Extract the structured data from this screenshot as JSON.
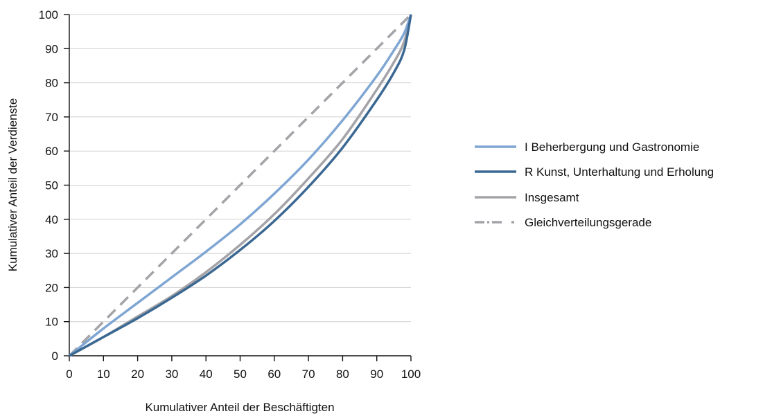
{
  "chart_data": {
    "type": "line",
    "title": "",
    "xlabel": "Kumulativer Anteil der Beschäftigten",
    "ylabel": "Kumulativer Anteil der Verdienste",
    "xlim": [
      0,
      100
    ],
    "ylim": [
      0,
      100
    ],
    "x_ticks": [
      "0",
      "10",
      "20",
      "30",
      "40",
      "50",
      "60",
      "70",
      "80",
      "90",
      "100"
    ],
    "y_ticks": [
      "0",
      "10",
      "20",
      "30",
      "40",
      "50",
      "60",
      "70",
      "80",
      "90",
      "100"
    ],
    "grid": "horizontal",
    "legend_position": "right",
    "x": [
      0,
      10,
      20,
      30,
      40,
      50,
      60,
      70,
      80,
      90,
      95,
      98,
      100
    ],
    "series": [
      {
        "name": "I Beherbergung und Gastronomie",
        "color": "#7fa6d3",
        "dash": "solid",
        "values": [
          0,
          8,
          15.5,
          23,
          30.5,
          38.5,
          47.5,
          57.5,
          69,
          82,
          89.5,
          94.5,
          100
        ]
      },
      {
        "name": "R Kunst, Unterhaltung und Erholung",
        "color": "#3a6892",
        "dash": "solid",
        "values": [
          0,
          5.5,
          11,
          17,
          23.5,
          31,
          39.5,
          49.5,
          61,
          75,
          83,
          89.5,
          100
        ]
      },
      {
        "name": "Insgesamt",
        "color": "#a3a3a8",
        "dash": "solid",
        "values": [
          0,
          5.5,
          11.5,
          17.5,
          24.5,
          32.5,
          41.5,
          52,
          63.5,
          78,
          86,
          92,
          100
        ]
      },
      {
        "name": "Gleichverteilungsgerade",
        "color": "#a3a3a8",
        "dash": "dashed",
        "values": [
          0,
          10,
          20,
          30,
          40,
          50,
          60,
          70,
          80,
          90,
          95,
          98,
          100
        ]
      }
    ]
  }
}
